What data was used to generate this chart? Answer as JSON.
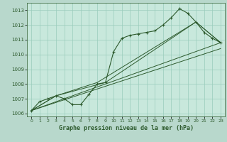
{
  "title": "Graphe pression niveau de la mer (hPa)",
  "bg_color": "#b8d8cc",
  "plot_bg_color": "#c8e8dc",
  "grid_color": "#99ccbb",
  "line_color": "#2d5a2d",
  "xlim": [
    -0.5,
    23.5
  ],
  "ylim": [
    1005.8,
    1013.5
  ],
  "yticks": [
    1006,
    1007,
    1008,
    1009,
    1010,
    1011,
    1012,
    1013
  ],
  "xticks": [
    0,
    1,
    2,
    3,
    4,
    5,
    6,
    7,
    8,
    9,
    10,
    11,
    12,
    13,
    14,
    15,
    16,
    17,
    18,
    19,
    20,
    21,
    22,
    23
  ],
  "series1": {
    "x": [
      0,
      1,
      2,
      3,
      4,
      5,
      6,
      7,
      8,
      9,
      10,
      11,
      12,
      13,
      14,
      15,
      16,
      17,
      18,
      19,
      20,
      21,
      22,
      23
    ],
    "y": [
      1006.2,
      1006.8,
      1007.0,
      1007.2,
      1007.0,
      1006.6,
      1006.6,
      1007.3,
      1008.0,
      1008.1,
      1010.2,
      1011.1,
      1011.3,
      1011.4,
      1011.5,
      1011.6,
      1012.0,
      1012.5,
      1013.1,
      1012.8,
      1012.2,
      1011.5,
      1011.1,
      1010.8
    ]
  },
  "series2": {
    "x": [
      0,
      3,
      8,
      20,
      23
    ],
    "y": [
      1006.2,
      1007.2,
      1008.1,
      1012.2,
      1010.8
    ]
  },
  "series3": {
    "x": [
      0,
      3,
      9,
      20,
      23
    ],
    "y": [
      1006.2,
      1007.2,
      1008.1,
      1012.2,
      1010.8
    ]
  },
  "series4": {
    "x": [
      0,
      23
    ],
    "y": [
      1006.2,
      1010.8
    ]
  },
  "series5": {
    "x": [
      0,
      23
    ],
    "y": [
      1006.2,
      1010.4
    ]
  }
}
